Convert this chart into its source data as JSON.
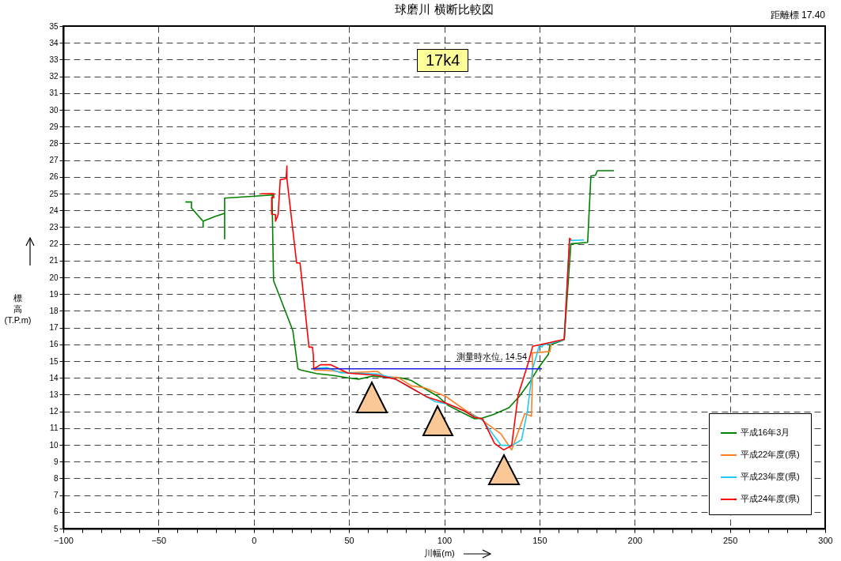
{
  "chart_data": {
    "type": "line",
    "title": "球磨川 横断比較図",
    "xlabel": "川幅(m)",
    "ylabel": "標高(T.P.m)",
    "xlim": [
      -100,
      300
    ],
    "ylim": [
      5,
      35
    ],
    "xticks": [
      {
        "value": -100,
        "label": "−100"
      },
      {
        "value": -90,
        "label": null
      },
      {
        "value": -80,
        "label": null
      },
      {
        "value": -70,
        "label": null
      },
      {
        "value": -60,
        "label": null
      },
      {
        "value": -50,
        "label": "−50"
      },
      {
        "value": -40,
        "label": null
      },
      {
        "value": -30,
        "label": null
      },
      {
        "value": -20,
        "label": null
      },
      {
        "value": -10,
        "label": null
      },
      0,
      {
        "value": 10,
        "label": null
      },
      {
        "value": 20,
        "label": null
      },
      {
        "value": 30,
        "label": null
      },
      {
        "value": 40,
        "label": null
      },
      50,
      {
        "value": 60,
        "label": null
      },
      {
        "value": 70,
        "label": null
      },
      {
        "value": 80,
        "label": null
      },
      {
        "value": 90,
        "label": null
      },
      100,
      {
        "value": 110,
        "label": null
      },
      {
        "value": 120,
        "label": null
      },
      {
        "value": 130,
        "label": null
      },
      {
        "value": 140,
        "label": null
      },
      150,
      {
        "value": 160,
        "label": null
      },
      {
        "value": 170,
        "label": null
      },
      {
        "value": 180,
        "label": null
      },
      {
        "value": 190,
        "label": null
      },
      200,
      {
        "value": 210,
        "label": null
      },
      {
        "value": 220,
        "label": null
      },
      {
        "value": 230,
        "label": null
      },
      {
        "value": 240,
        "label": null
      },
      250,
      {
        "value": 260,
        "label": null
      },
      {
        "value": 270,
        "label": null
      },
      {
        "value": 280,
        "label": null
      },
      {
        "value": 290,
        "label": null
      },
      300
    ],
    "yticks": [
      5,
      6,
      7,
      8,
      9,
      10,
      11,
      12,
      13,
      14,
      15,
      16,
      17,
      18,
      19,
      20,
      21,
      22,
      23,
      24,
      25,
      26,
      27,
      28,
      29,
      30,
      31,
      32,
      33,
      34,
      35
    ],
    "grid": true,
    "legend": "bottom right",
    "line_style": "solid",
    "marker": "none",
    "annotations": [
      "17k4",
      "距離標 17.40",
      {
        "text": "測量時水位, 14.54",
        "x": 125,
        "y": 14.54
      }
    ],
    "series": [
      {
        "name": "平成16年3月",
        "color": "#008000",
        "x": [
          -35.9,
          -32.7,
          -32.7,
          -26.6,
          -26.6,
          -26.6,
          -20.4,
          -15.3,
          -15.3,
          -15.3,
          10.1,
          9.6,
          10.4,
          20.5,
          23.2,
          24.6,
          32.9,
          41.2,
          49.5,
          55.1,
          62.3,
          77.2,
          82.8,
          89.7,
          96.6,
          102.2,
          109.1,
          116,
          120.1,
          125.7,
          134,
          139.5,
          145,
          149.2,
          154.7,
          155.5,
          163,
          166.5,
          175.3,
          177,
          179.4,
          180.4,
          189.1
        ],
        "values": [
          24.5,
          24.5,
          24.14,
          23.35,
          23.0,
          23.35,
          23.63,
          23.82,
          22.3,
          24.73,
          24.92,
          24.76,
          19.8,
          16.83,
          14.54,
          14.47,
          14.26,
          14.15,
          14.0,
          13.92,
          14.1,
          14.0,
          13.84,
          13.36,
          12.9,
          12.34,
          11.95,
          11.56,
          11.6,
          11.8,
          12.22,
          12.9,
          13.76,
          14.55,
          15.41,
          15.96,
          16.27,
          22.0,
          22.09,
          26.05,
          26.1,
          26.37,
          26.37
        ]
      },
      {
        "name": "平成22年度(県)",
        "color": "#ff7f27",
        "x": [
          31.5,
          32.4,
          41.2,
          49.5,
          64.8,
          68.9,
          75.8,
          82.8,
          89.7,
          100.7,
          110.5,
          118.8,
          129.8,
          135.4,
          142.3,
          145.8,
          146.4,
          146.2,
          155.5,
          156.2
        ],
        "values": [
          14.45,
          14.47,
          14.42,
          14.3,
          14.39,
          14.07,
          14.02,
          13.52,
          13.41,
          12.9,
          12.11,
          11.56,
          10.65,
          9.7,
          11.87,
          11.71,
          14.54,
          15.49,
          15.57,
          16.04
        ]
      },
      {
        "name": "平成23年度(県)",
        "color": "#1ec8f0",
        "x": [
          31.5,
          38.4,
          45.4,
          64.8,
          73.1,
          85.5,
          95.2,
          102.2,
          110.5,
          120.1,
          129.8,
          135.4,
          140.6,
          143.7,
          146.4,
          149.2,
          149.9,
          151.3,
          152,
          163,
          165.8,
          173.4
        ],
        "values": [
          14.56,
          14.62,
          14.31,
          14.23,
          14.0,
          13.21,
          12.58,
          12.42,
          12.03,
          11.48,
          9.98,
          9.95,
          10.3,
          12.03,
          14.54,
          15.64,
          15.96,
          15.83,
          15.96,
          16.27,
          22.2,
          22.23
        ]
      },
      {
        "name": "平成24年度(県)",
        "color": "#ff0000",
        "x": [
          3.6,
          10.5,
          10.5,
          9.4,
          9.4,
          11.4,
          11.4,
          12.8,
          13.9,
          17.0,
          17.4,
          17.4,
          22.5,
          24.3,
          29.0,
          30.8,
          31.3,
          31.5,
          35.0,
          40.5,
          49.5,
          64.8,
          74.5,
          81.4,
          91.1,
          100.7,
          110.5,
          116,
          120.1,
          126.4,
          131.2,
          135.4,
          138.8,
          144.4,
          146.4,
          155.5,
          163,
          165.8,
          166.6
        ],
        "values": [
          24.99,
          25.0,
          24.76,
          24.76,
          23.77,
          23.74,
          23.35,
          23.74,
          25.83,
          25.9,
          26.65,
          25.9,
          20.86,
          20.86,
          15.83,
          15.83,
          15.33,
          14.54,
          14.78,
          14.78,
          14.28,
          14.15,
          13.92,
          13.48,
          12.85,
          12.5,
          12.03,
          11.64,
          11.56,
          10.09,
          9.7,
          9.95,
          12.97,
          15.0,
          15.88,
          16.11,
          16.3,
          22.33,
          22.25
        ]
      },
      {
        "color": "#2020e0",
        "x": [
          30.1,
          151.3
        ],
        "values": [
          14.54,
          14.54
        ]
      }
    ]
  }
}
